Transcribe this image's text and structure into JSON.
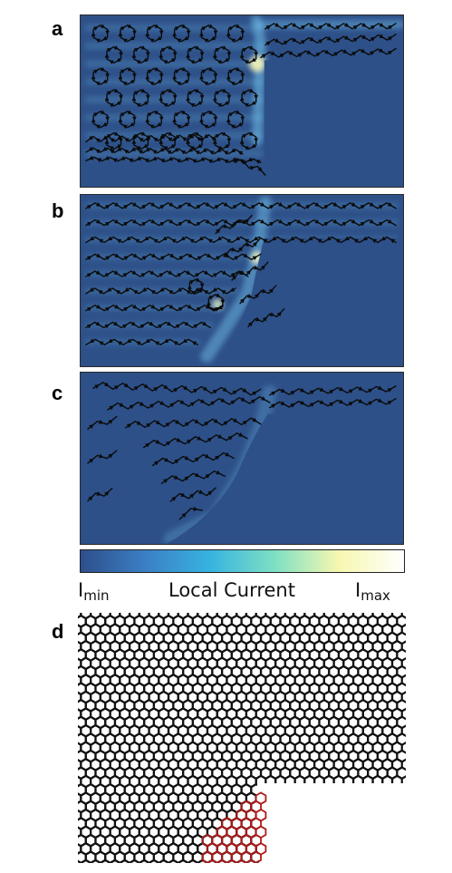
{
  "panels": {
    "a": {
      "label": "a"
    },
    "b": {
      "label": "b"
    },
    "c": {
      "label": "c"
    },
    "d": {
      "label": "d"
    }
  },
  "colorbar": {
    "min_label": "I",
    "min_sub": "min",
    "center_label": "Local Current",
    "max_label": "I",
    "max_sub": "max",
    "colors": [
      "#2d4f8b",
      "#3b7fc4",
      "#37b3e0",
      "#7ee0c3",
      "#f7f7b0",
      "#ffffff"
    ]
  },
  "styles": {
    "background": "#2d5088",
    "glow": "#7fd8ff",
    "arrow": "#0a0a0a",
    "lattice": "#111111",
    "lattice_highlight": "#b01818"
  }
}
